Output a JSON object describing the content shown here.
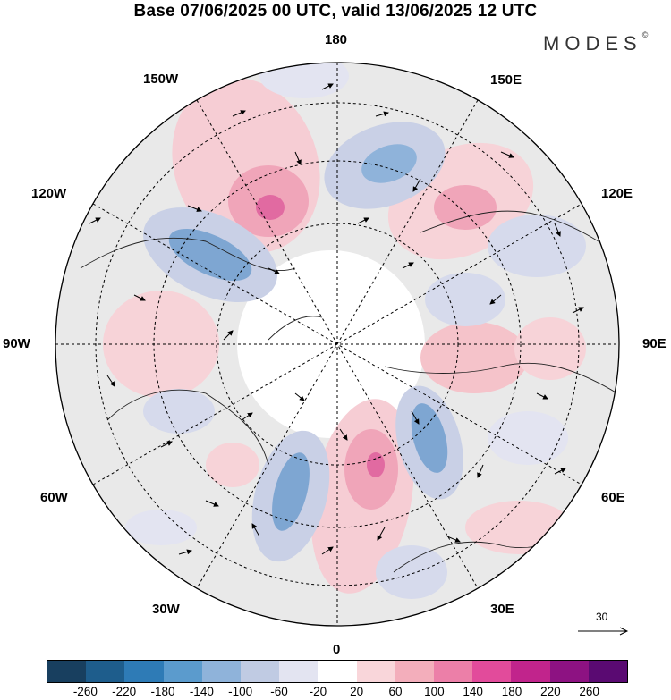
{
  "title": "Base 07/06/2025 00 UTC, valid 13/06/2025 12 UTC",
  "brand": "MODES",
  "brand_mark": "©",
  "longitude_labels": {
    "top": "180",
    "top_left": "150W",
    "top_right": "150E",
    "upper_left": "120W",
    "upper_right": "120E",
    "left": "90W",
    "right": "90E",
    "lower_left": "60W",
    "lower_right": "60E",
    "bottom_left": "30W",
    "bottom_right": "30E",
    "bottom": "0"
  },
  "reference_vector_label": "30",
  "colorbar": {
    "colors": [
      "#183f5f",
      "#1e5d8c",
      "#2e7bb6",
      "#5b9bcd",
      "#8fb3da",
      "#c0cbe3",
      "#e3e4f1",
      "#ffffff",
      "#f9d6da",
      "#f3aebb",
      "#ec7fa8",
      "#e24b9b",
      "#c1248c",
      "#8d1282",
      "#5a0a72"
    ],
    "tick_labels": [
      "-260",
      "-220",
      "-180",
      "-140",
      "-100",
      "-60",
      "-20",
      "20",
      "60",
      "100",
      "140",
      "180",
      "220",
      "260"
    ]
  }
}
